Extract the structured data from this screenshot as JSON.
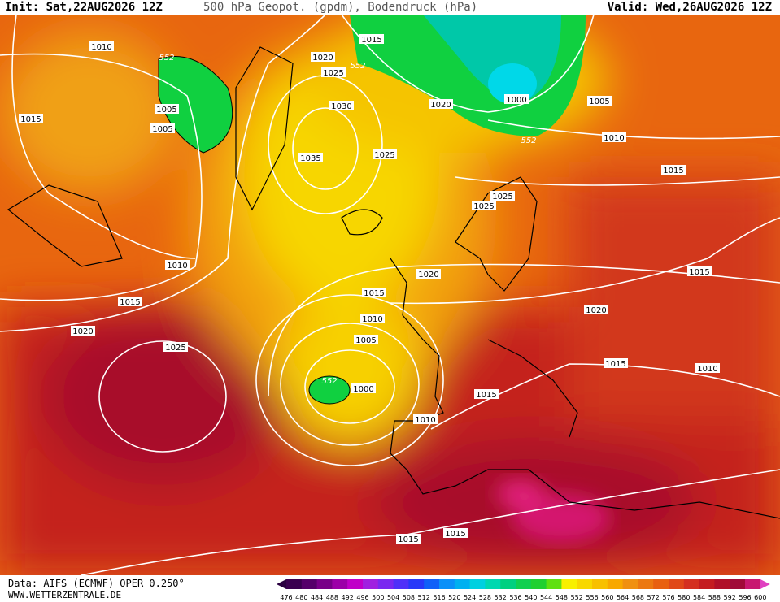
{
  "header": {
    "init": "Init: Sat,22AUG2026 12Z",
    "title": "500 hPa Geopot. (gpdm), Bodendruck (hPa)",
    "valid": "Valid: Wed,26AUG2026 12Z"
  },
  "footer": {
    "source": "Data: AIFS (ECMWF) OPER 0.250°",
    "site": "WWW.WETTERZENTRALE.DE"
  },
  "colorbar": {
    "labels": [
      476,
      480,
      484,
      488,
      492,
      496,
      500,
      504,
      508,
      512,
      516,
      520,
      524,
      528,
      532,
      536,
      540,
      544,
      548,
      552,
      556,
      560,
      564,
      568,
      572,
      576,
      580,
      584,
      588,
      592,
      596,
      600
    ]
  },
  "map": {
    "isobar_labels": [
      "1010",
      "552",
      "1015",
      "1020",
      "552",
      "1025",
      "1005",
      "1005",
      "1030",
      "1035",
      "1025",
      "1020",
      "1000",
      "1005",
      "1010",
      "552",
      "1015",
      "1015",
      "1025",
      "1025",
      "1010",
      "1020",
      "1015",
      "1015",
      "1015",
      "1020",
      "1020",
      "1010",
      "1025",
      "1005",
      "1015",
      "1010",
      "552",
      "1000",
      "1015",
      "1010",
      "1015",
      "1015"
    ]
  }
}
